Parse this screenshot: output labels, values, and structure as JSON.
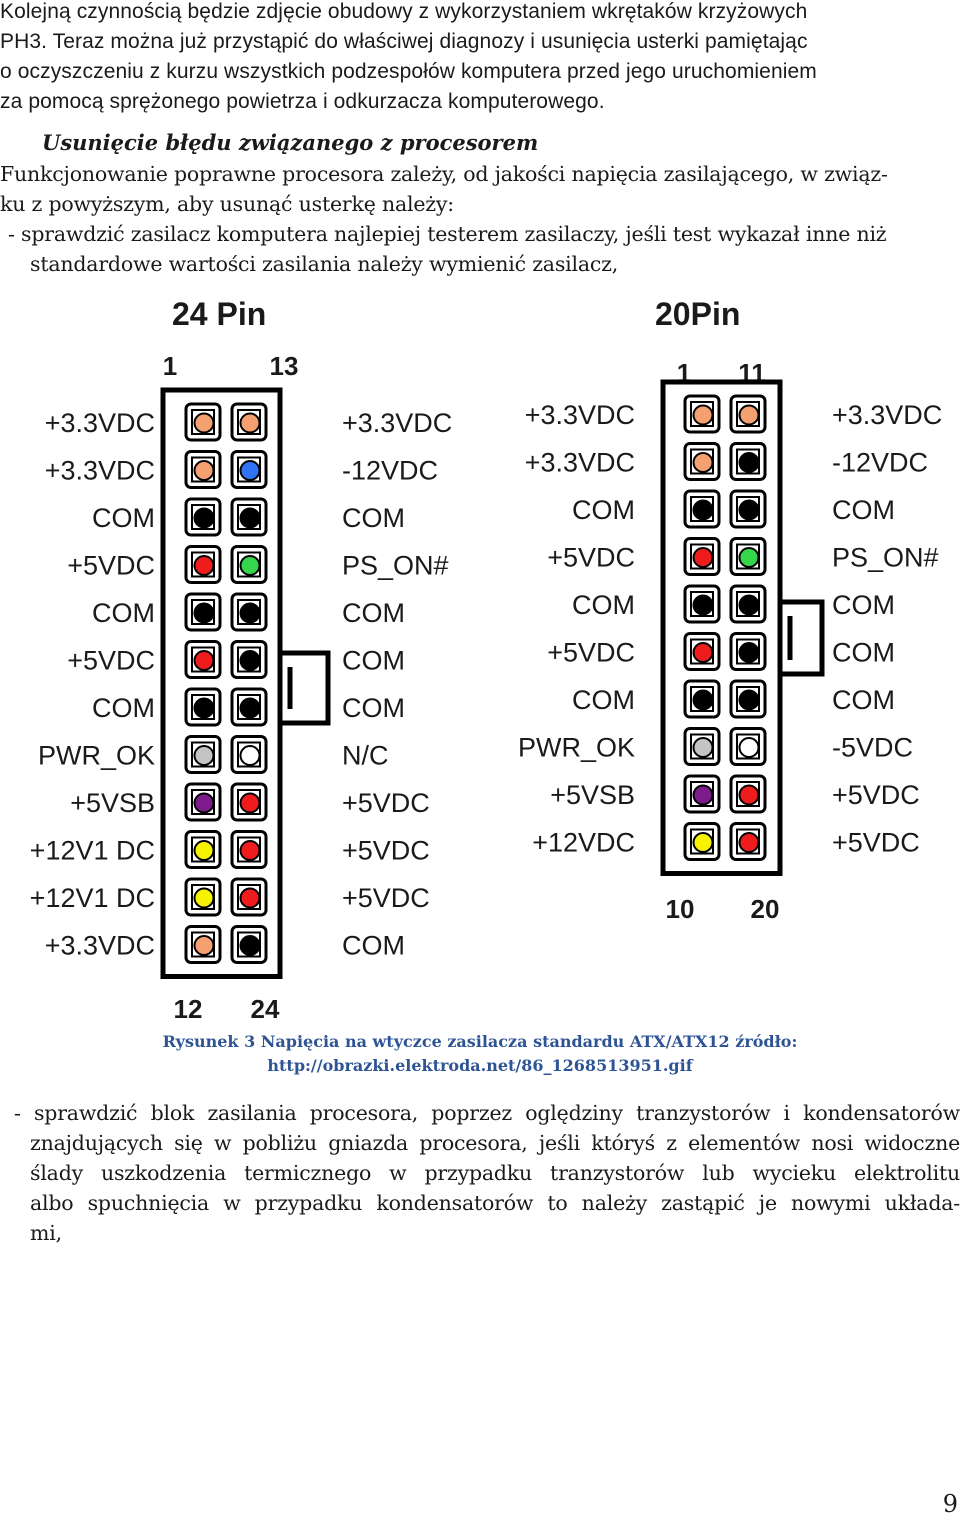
{
  "intro_lines": [
    "Kolejną czynnością będzie zdjęcie obudowy z wykorzystaniem wkrętaków krzyżowych",
    "PH3. Teraz można już przystąpić do właściwej diagnozy i usunięcia usterki pamiętając",
    "o oczyszczeniu z kurzu wszystkich podzespołów komputera przed jego uruchomieniem",
    "za pomocą sprężonego powietrza i odkurzacza komputerowego."
  ],
  "heading": "Usunięcie błędu związanego z procesorem",
  "paragraph_lines": [
    "Funkcjonowanie poprawne procesora zależy, od jakości napięcia zasilającego, w związ-",
    "ku z powyższym, aby usunąć usterkę należy:"
  ],
  "bullet1_lines": [
    "- sprawdzić zasilacz komputera najlepiej testerem zasilaczy, jeśli test wykazał inne niż",
    "standardowe wartości zasilania należy wymienić zasilacz,"
  ],
  "diagram": {
    "connectors": [
      {
        "title": "24 Pin",
        "top_numbers": [
          "1",
          "13"
        ],
        "bottom_numbers": [
          "12",
          "24"
        ],
        "left_labels": [
          "+3.3VDC",
          "+3.3VDC",
          "COM",
          "+5VDC",
          "COM",
          "+5VDC",
          "COM",
          "PWR_OK",
          "+5VSB",
          "+12V1 DC",
          "+12V1 DC",
          "+3.3VDC"
        ],
        "right_labels": [
          "+3.3VDC",
          "-12VDC",
          "COM",
          "PS_ON#",
          "COM",
          "COM",
          "COM",
          "N/C",
          "+5VDC",
          "+5VDC",
          "+5VDC",
          "COM"
        ],
        "left_colors": [
          "#f4a071",
          "#f4a071",
          "#000000",
          "#ee1c1c",
          "#000000",
          "#ee1c1c",
          "#000000",
          "#c4c4c4",
          "#7d1a8c",
          "#f7f200",
          "#f7f200",
          "#f4a071"
        ],
        "right_colors": [
          "#f4a071",
          "#2f74f5",
          "#000000",
          "#35d64b",
          "#000000",
          "#000000",
          "#000000",
          "#ffffff",
          "#ee1c1c",
          "#ee1c1c",
          "#ee1c1c",
          "#000000"
        ]
      },
      {
        "title": "20Pin",
        "top_numbers": [
          "1",
          "11"
        ],
        "bottom_numbers": [
          "10",
          "20"
        ],
        "left_labels": [
          "+3.3VDC",
          "+3.3VDC",
          "COM",
          "+5VDC",
          "COM",
          "+5VDC",
          "COM",
          "PWR_OK",
          "+5VSB",
          "+12VDC"
        ],
        "right_labels": [
          "+3.3VDC",
          "-12VDC",
          "COM",
          "PS_ON#",
          "COM",
          "COM",
          "COM",
          "-5VDC",
          "+5VDC",
          "+5VDC"
        ],
        "left_colors": [
          "#f4a071",
          "#f4a071",
          "#000000",
          "#ee1c1c",
          "#000000",
          "#ee1c1c",
          "#000000",
          "#c4c4c4",
          "#7d1a8c",
          "#f7f200"
        ],
        "right_colors": [
          "#f4a071",
          "#000000",
          "#000000",
          "#35d64b",
          "#000000",
          "#000000",
          "#000000",
          "#ffffff",
          "#ee1c1c",
          "#ee1c1c"
        ]
      }
    ]
  },
  "caption_lines": [
    "Rysunek 3 Napięcia na wtyczce zasilacza standardu ATX/ATX12  źródło:",
    "http://obrazki.elektroda.net/86_1268513951.gif"
  ],
  "bullet2_lines": [
    "- sprawdzić blok zasilania procesora, poprzez oględziny tranzystorów i kondensatorów",
    "znajdujących się w pobliżu gniazda procesora, jeśli któryś z elementów nosi widoczne",
    "ślady uszkodzenia termicznego w przypadku tranzystorów lub wycieku elektrolitu",
    "albo spuchnięcia w przypadku kondensatorów to należy zastąpić je nowymi układa-",
    "mi,"
  ],
  "page_number": "9"
}
